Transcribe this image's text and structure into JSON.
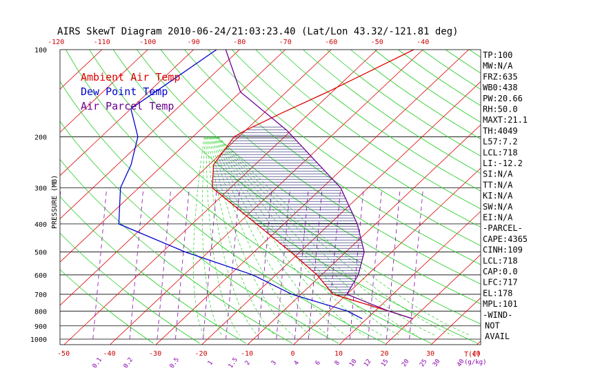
{
  "chart_data": {
    "type": "skewt",
    "title": "AIRS SkewT Diagram 2010-06-24/21:03:23.40 (Lat/Lon 43.32/-121.81 deg)",
    "ylabel": "PRESSURE (MB)",
    "pressure_ticks": [
      100,
      200,
      300,
      400,
      500,
      600,
      700,
      800,
      900,
      1000
    ],
    "top_temp_ticks": [
      -120,
      -110,
      -100,
      -90,
      -80,
      -70,
      -60,
      -50,
      -40
    ],
    "bottom_temp_ticks": [
      -50,
      -40,
      -30,
      -20,
      -10,
      0,
      10,
      20,
      30,
      40
    ],
    "bottom_axis_unit": "T(C)",
    "mixing_ratio_ticks": [
      "0.1",
      "0.2",
      "0.5",
      "1",
      "1.5",
      "2",
      "3",
      "4",
      "6",
      "8",
      "10",
      "12",
      "15",
      "20",
      "25",
      "30",
      "40"
    ],
    "mixing_ratio_unit": "(g/kg)",
    "legend": [
      {
        "label": "Ambient Air Temp",
        "color": "#dd0000"
      },
      {
        "label": "Dew Point Temp",
        "color": "#0000cc"
      },
      {
        "label": "Air Parcel Temp",
        "color": "#6a0090"
      }
    ],
    "series": [
      {
        "name": "Ambient Air Temp",
        "points": [
          [
            100,
            -42
          ],
          [
            140,
            -51
          ],
          [
            165,
            -56
          ],
          [
            190,
            -60
          ],
          [
            200,
            -61
          ],
          [
            250,
            -59
          ],
          [
            300,
            -54
          ],
          [
            400,
            -36
          ],
          [
            500,
            -22
          ],
          [
            600,
            -11
          ],
          [
            700,
            -3
          ],
          [
            800,
            13
          ],
          [
            850,
            20
          ]
        ]
      },
      {
        "name": "Dew Point Temp",
        "points": [
          [
            100,
            -85
          ],
          [
            160,
            -90
          ],
          [
            200,
            -82
          ],
          [
            250,
            -77
          ],
          [
            300,
            -74
          ],
          [
            400,
            -66
          ],
          [
            500,
            -45
          ],
          [
            600,
            -25
          ],
          [
            700,
            -12
          ],
          [
            800,
            4
          ],
          [
            850,
            9
          ]
        ]
      },
      {
        "name": "Air Parcel Temp",
        "points": [
          [
            100,
            -83
          ],
          [
            140,
            -70
          ],
          [
            190,
            -51
          ],
          [
            250,
            -36
          ],
          [
            300,
            -26
          ],
          [
            400,
            -14
          ],
          [
            500,
            -6
          ],
          [
            600,
            -2
          ],
          [
            700,
            0
          ],
          [
            800,
            13
          ],
          [
            850,
            20
          ]
        ]
      }
    ],
    "indices": [
      "TP:100",
      "MW:N/A",
      "FRZ:635",
      "WB0:438",
      "PW:20.66",
      "RH:50.0",
      "MAXT:21.1",
      "TH:4049",
      "L57:7.2",
      "LCL:718",
      "LI:-12.2",
      "SI:N/A",
      "TT:N/A",
      "KI:N/A",
      "SW:N/A",
      "EI:N/A",
      "-PARCEL-",
      "CAPE:4365",
      "CINH:109",
      "LCL:718",
      "CAP:0.0",
      "LFC:717",
      "EL:178",
      "MPL:101",
      "-WIND-",
      "NOT",
      "AVAIL"
    ],
    "colors": {
      "isotherm": "#dd0000",
      "dry_adiabat": "#22cc22",
      "moist_adiabat": "#22cc22",
      "mixing_ratio": "#8800aa",
      "isobar": "#000000",
      "hatch": "#1a1a6a"
    }
  }
}
